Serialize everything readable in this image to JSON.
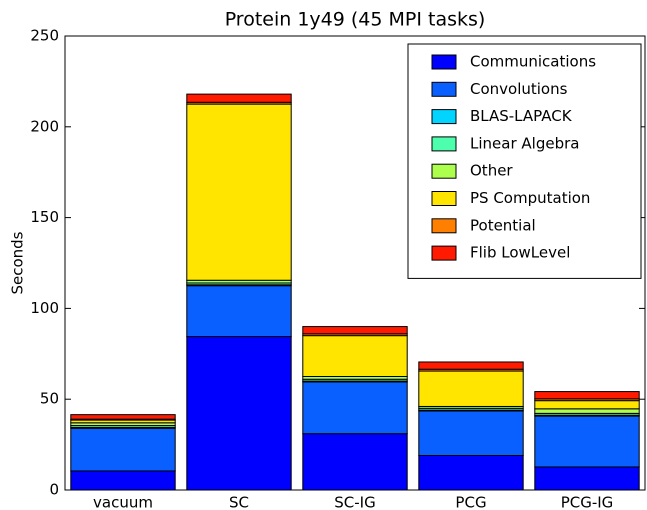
{
  "chart_data": {
    "type": "stacked-bar",
    "title": "Protein 1y49 (45 MPI tasks)",
    "y_label": "Seconds",
    "categories": [
      "vacuum",
      "SC",
      "SC-IG",
      "PCG",
      "PCG-IG"
    ],
    "series": [
      {
        "name": "Communications",
        "color": "#0000ff",
        "values": [
          10.5,
          84.5,
          31,
          19,
          12.7
        ]
      },
      {
        "name": "Convolutions",
        "color": "#0a60ff",
        "values": [
          23.5,
          28,
          28.5,
          24.5,
          28
        ]
      },
      {
        "name": "BLAS-LAPACK",
        "color": "#00d4ff",
        "values": [
          0.5,
          0.5,
          0.5,
          0.5,
          0.5
        ]
      },
      {
        "name": "Linear Algebra",
        "color": "#4dffad",
        "values": [
          1,
          1,
          1,
          1,
          1
        ]
      },
      {
        "name": "Other",
        "color": "#adff4d",
        "values": [
          1.5,
          1.5,
          1.5,
          1,
          2.5
        ]
      },
      {
        "name": "PS Computation",
        "color": "#ffe500",
        "values": [
          1.5,
          97,
          22.5,
          19.5,
          4.5
        ]
      },
      {
        "name": "Potential",
        "color": "#ff7f00",
        "values": [
          0.5,
          1,
          1,
          1,
          1
        ]
      },
      {
        "name": "Flib LowLevel",
        "color": "#ff1a00",
        "values": [
          2.5,
          4.5,
          4,
          4,
          4
        ]
      }
    ],
    "ylim": [
      0,
      250
    ],
    "yticks": [
      0,
      50,
      100,
      150,
      200,
      250
    ],
    "grid": false,
    "legend": "upper right"
  }
}
